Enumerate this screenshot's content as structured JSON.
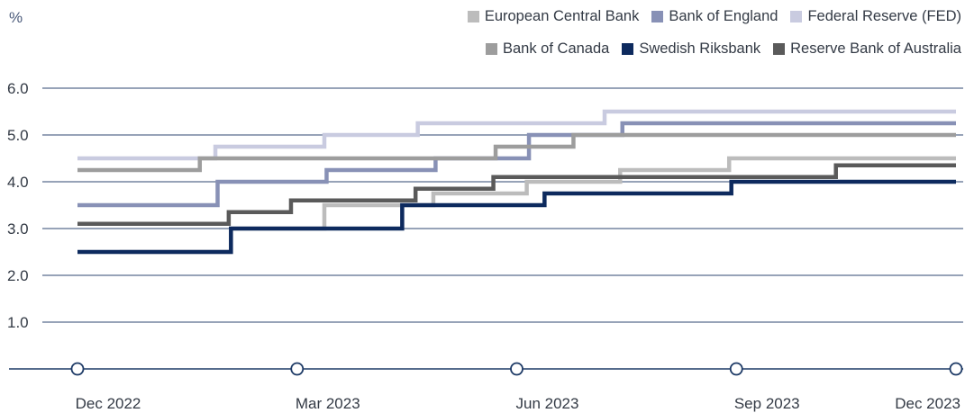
{
  "chart_data": {
    "type": "line",
    "step": true,
    "yunit": "%",
    "ylim": [
      0,
      6.0
    ],
    "yticks": [
      "1.0",
      "2.0",
      "3.0",
      "4.0",
      "5.0",
      "6.0"
    ],
    "x_axis_markers": [
      "Dec 2022",
      "Mar 2023",
      "Jun 2023",
      "Sep 2023",
      "Dec 2023"
    ],
    "grid": true,
    "legend_position": "top-right",
    "series": [
      {
        "name": "European Central Bank",
        "color": "#bcbcbc",
        "points": [
          [
            "2022-12-20",
            2.5
          ],
          [
            "2023-02-08",
            3.0
          ],
          [
            "2023-03-22",
            3.5
          ],
          [
            "2023-05-10",
            3.75
          ],
          [
            "2023-06-21",
            4.0
          ],
          [
            "2023-08-02",
            4.25
          ],
          [
            "2023-09-20",
            4.5
          ],
          [
            "2023-12-31",
            4.5
          ]
        ]
      },
      {
        "name": "Bank of England",
        "color": "#8891b6",
        "points": [
          [
            "2022-12-01",
            3.5
          ],
          [
            "2023-02-02",
            4.0
          ],
          [
            "2023-03-23",
            4.25
          ],
          [
            "2023-05-11",
            4.5
          ],
          [
            "2023-06-22",
            5.0
          ],
          [
            "2023-08-03",
            5.25
          ],
          [
            "2023-12-31",
            5.25
          ]
        ]
      },
      {
        "name": "Federal Reserve (FED)",
        "color": "#c9cbe0",
        "points": [
          [
            "2022-12-01",
            4.5
          ],
          [
            "2023-02-01",
            4.75
          ],
          [
            "2023-03-22",
            5.0
          ],
          [
            "2023-05-03",
            5.25
          ],
          [
            "2023-07-26",
            5.5
          ],
          [
            "2023-12-31",
            5.5
          ]
        ]
      },
      {
        "name": "Bank of Canada",
        "color": "#9d9d9d",
        "points": [
          [
            "2022-12-01",
            4.25
          ],
          [
            "2023-01-25",
            4.5
          ],
          [
            "2023-06-07",
            4.75
          ],
          [
            "2023-07-12",
            5.0
          ],
          [
            "2023-12-31",
            5.0
          ]
        ]
      },
      {
        "name": "Swedish Riksbank",
        "color": "#0d2a5e",
        "points": [
          [
            "2022-12-01",
            2.5
          ],
          [
            "2023-02-08",
            3.0
          ],
          [
            "2023-04-26",
            3.5
          ],
          [
            "2023-06-29",
            3.75
          ],
          [
            "2023-09-21",
            4.0
          ],
          [
            "2023-12-31",
            4.0
          ]
        ]
      },
      {
        "name": "Reserve Bank of Australia",
        "color": "#5a5a5a",
        "points": [
          [
            "2022-12-01",
            3.1
          ],
          [
            "2023-02-07",
            3.35
          ],
          [
            "2023-03-07",
            3.6
          ],
          [
            "2023-05-02",
            3.85
          ],
          [
            "2023-06-06",
            4.1
          ],
          [
            "2023-11-07",
            4.35
          ],
          [
            "2023-12-31",
            4.35
          ]
        ]
      }
    ]
  }
}
